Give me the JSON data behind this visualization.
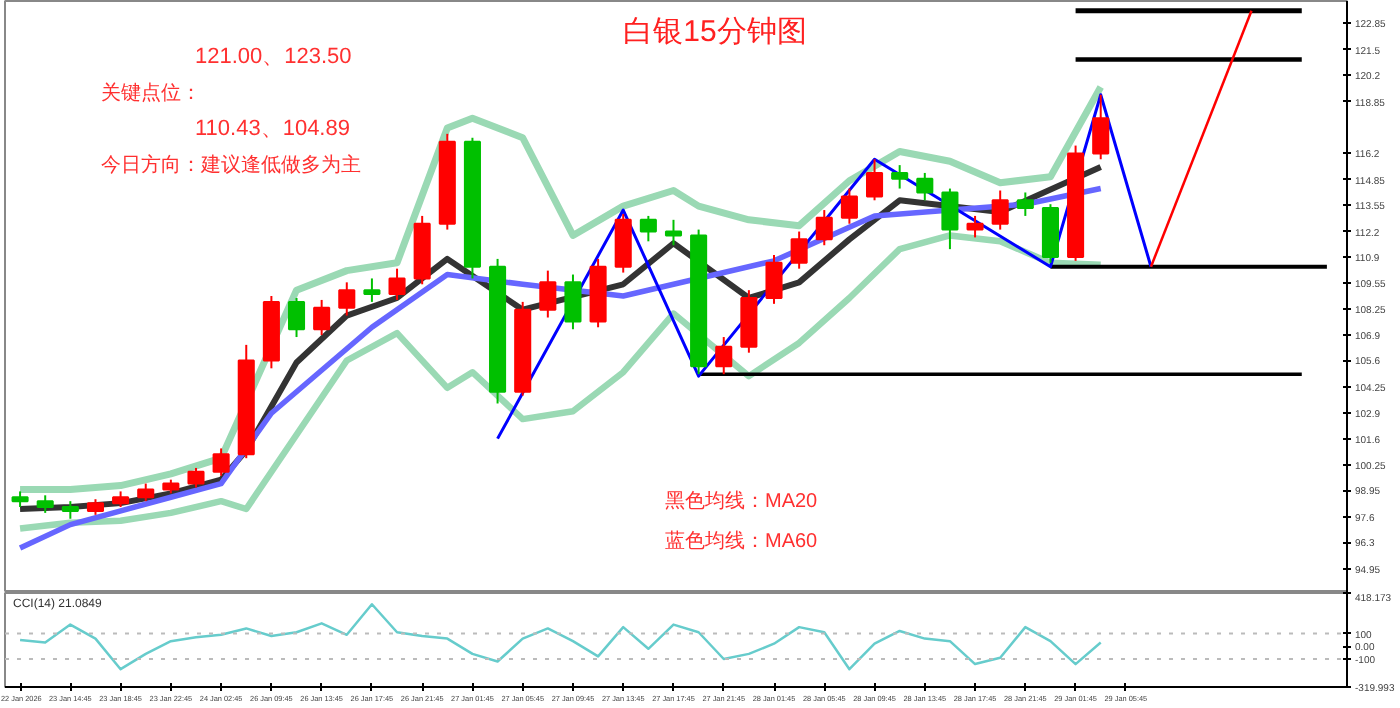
{
  "chart_data": [
    {
      "type": "candlestick",
      "title": "白银15分钟图",
      "annotations": [
        "121.00、123.50",
        "关键点位：",
        "110.43、104.89",
        "今日方向：建议逢低做多为主",
        "黑色均线：MA20",
        "蓝色均线：MA60"
      ],
      "categories": [
        null,
        null,
        null,
        null,
        null,
        null,
        null,
        null,
        null,
        null,
        null,
        null,
        null,
        null,
        null,
        null,
        null,
        null,
        null,
        null,
        null,
        null,
        null,
        null,
        null,
        null,
        null,
        null,
        null,
        null,
        null,
        null,
        null,
        null,
        null,
        null,
        null,
        null,
        null,
        null,
        null,
        null,
        null,
        null,
        null,
        null,
        null,
        null,
        null,
        null,
        null,
        null,
        null
      ],
      "ohlc": [
        [
          98.6,
          98.9,
          98.1,
          98.4
        ],
        [
          98.4,
          98.7,
          97.8,
          98.1
        ],
        [
          98.1,
          98.4,
          97.5,
          97.9
        ],
        [
          97.9,
          98.5,
          97.7,
          98.3
        ],
        [
          98.3,
          98.9,
          98.1,
          98.6
        ],
        [
          98.6,
          99.3,
          98.4,
          99.0
        ],
        [
          99.0,
          99.5,
          98.8,
          99.3
        ],
        [
          99.3,
          100.1,
          99.1,
          99.9
        ],
        [
          99.9,
          101.1,
          99.7,
          100.8
        ],
        [
          100.8,
          106.4,
          100.6,
          105.6
        ],
        [
          105.6,
          108.9,
          105.2,
          108.6
        ],
        [
          108.6,
          108.8,
          106.8,
          107.2
        ],
        [
          107.2,
          108.7,
          106.9,
          108.3
        ],
        [
          108.3,
          109.6,
          107.9,
          109.2
        ],
        [
          109.2,
          109.8,
          108.6,
          109.0
        ],
        [
          109.0,
          110.3,
          108.7,
          109.8
        ],
        [
          109.8,
          113.0,
          109.5,
          112.6
        ],
        [
          112.6,
          117.2,
          112.3,
          116.8
        ],
        [
          116.8,
          117.0,
          109.8,
          110.4
        ],
        [
          110.4,
          110.8,
          103.4,
          104.0
        ],
        [
          104.0,
          108.6,
          103.8,
          108.2
        ],
        [
          108.2,
          110.2,
          107.8,
          109.6
        ],
        [
          109.6,
          110.0,
          107.2,
          107.6
        ],
        [
          107.6,
          110.8,
          107.3,
          110.4
        ],
        [
          110.4,
          113.1,
          110.1,
          112.8
        ],
        [
          112.8,
          113.0,
          111.7,
          112.2
        ],
        [
          112.2,
          112.8,
          111.5,
          112.0
        ],
        [
          112.0,
          112.3,
          104.9,
          105.3
        ],
        [
          105.3,
          106.8,
          104.9,
          106.3
        ],
        [
          106.3,
          109.2,
          106.0,
          108.8
        ],
        [
          108.8,
          111.0,
          108.5,
          110.6
        ],
        [
          110.6,
          112.2,
          110.3,
          111.8
        ],
        [
          111.8,
          113.3,
          111.5,
          112.9
        ],
        [
          112.9,
          114.4,
          112.6,
          114.0
        ],
        [
          114.0,
          115.9,
          113.8,
          115.2
        ],
        [
          115.2,
          115.6,
          114.4,
          114.9
        ],
        [
          114.9,
          115.2,
          113.8,
          114.2
        ],
        [
          114.2,
          114.4,
          111.3,
          112.3
        ],
        [
          112.3,
          113.0,
          111.9,
          112.6
        ],
        [
          112.6,
          114.3,
          112.3,
          113.8
        ],
        [
          113.8,
          114.2,
          113.0,
          113.4
        ],
        [
          113.4,
          113.6,
          110.6,
          110.9
        ],
        [
          110.9,
          116.6,
          110.7,
          116.2
        ],
        [
          116.2,
          119.2,
          115.9,
          118.0
        ],
        null,
        null,
        null,
        null,
        null,
        null,
        null,
        null,
        null
      ],
      "colors": [
        "#00c000",
        "#00c000",
        "#00c000",
        "#ff0000",
        "#ff0000",
        "#ff0000",
        "#ff0000",
        "#ff0000",
        "#ff0000",
        "#ff0000",
        "#ff0000",
        "#00c000",
        "#ff0000",
        "#ff0000",
        "#00c000",
        "#ff0000",
        "#ff0000",
        "#ff0000",
        "#00c000",
        "#00c000",
        "#ff0000",
        "#ff0000",
        "#00c000",
        "#ff0000",
        "#ff0000",
        "#00c000",
        "#00c000",
        "#00c000",
        "#ff0000",
        "#ff0000",
        "#ff0000",
        "#ff0000",
        "#ff0000",
        "#ff0000",
        "#ff0000",
        "#00c000",
        "#00c000",
        "#00c000",
        "#ff0000",
        "#ff0000",
        "#00c000",
        "#00c000",
        "#ff0000",
        "#ff0000",
        null,
        null,
        null,
        null,
        null,
        null,
        null,
        null,
        null
      ],
      "series": [
        {
          "type": "line",
          "color": "#9ad9b4",
          "values": [
            99.0,
            null,
            99.0,
            null,
            99.2,
            null,
            99.8,
            null,
            100.6,
            null,
            null,
            109.2,
            null,
            110.2,
            null,
            110.6,
            null,
            117.5,
            118.0,
            null,
            117.0,
            null,
            112.0,
            null,
            113.5,
            null,
            114.3,
            113.5,
            null,
            112.8,
            null,
            112.5,
            null,
            114.8,
            null,
            116.3,
            null,
            115.8,
            null,
            114.7,
            null,
            115.0,
            null,
            119.6,
            null,
            null,
            null,
            null,
            null,
            null,
            null,
            null,
            null
          ]
        },
        {
          "type": "line",
          "color": "#9ad9b4",
          "values": [
            97.0,
            null,
            97.3,
            null,
            97.4,
            null,
            97.8,
            null,
            98.4,
            98.0,
            null,
            101.8,
            null,
            105.6,
            null,
            107.0,
            null,
            104.2,
            105.0,
            null,
            102.6,
            null,
            103.0,
            null,
            105.0,
            null,
            108.0,
            null,
            null,
            104.8,
            null,
            106.5,
            null,
            108.8,
            null,
            111.3,
            null,
            112.0,
            null,
            111.7,
            null,
            110.6,
            null,
            110.5,
            null,
            null,
            null,
            null,
            null,
            null,
            null,
            null,
            null
          ]
        },
        {
          "type": "line",
          "color": "#333333",
          "values": [
            98.0,
            null,
            98.1,
            null,
            98.3,
            null,
            98.8,
            null,
            99.5,
            101.0,
            null,
            105.5,
            null,
            107.9,
            null,
            108.8,
            null,
            110.8,
            null,
            null,
            108.2,
            null,
            null,
            null,
            109.5,
            null,
            111.6,
            null,
            null,
            108.8,
            null,
            109.6,
            null,
            111.8,
            null,
            113.8,
            null,
            null,
            null,
            113.2,
            null,
            null,
            null,
            115.5,
            null,
            null,
            null,
            null,
            null,
            null,
            null,
            null,
            null
          ]
        },
        {
          "type": "line",
          "color": "#6666ff",
          "values": [
            96.0,
            null,
            97.2,
            null,
            null,
            null,
            98.6,
            null,
            99.3,
            null,
            102.9,
            null,
            null,
            null,
            107.3,
            null,
            null,
            110.0,
            null,
            null,
            109.5,
            null,
            null,
            null,
            108.9,
            null,
            null,
            null,
            null,
            null,
            110.7,
            null,
            null,
            null,
            113.0,
            null,
            null,
            null,
            null,
            null,
            113.6,
            null,
            null,
            114.4,
            null,
            null,
            null,
            null,
            null,
            null,
            null,
            null,
            null
          ]
        },
        {
          "type": "line",
          "color": "#000000",
          "values": [
            null,
            null,
            null,
            null,
            null,
            null,
            null,
            null,
            null,
            null,
            null,
            null,
            null,
            null,
            null,
            null,
            null,
            null,
            null,
            null,
            null,
            null,
            null,
            null,
            null,
            null,
            null,
            null,
            null,
            null,
            null,
            null,
            null,
            null,
            null,
            null,
            null,
            null,
            null,
            null,
            null,
            null,
            123.5,
            null,
            null,
            null,
            null,
            null,
            null,
            null,
            null,
            123.5,
            null
          ]
        },
        {
          "type": "line",
          "color": "#000000",
          "values": [
            null,
            null,
            null,
            null,
            null,
            null,
            null,
            null,
            null,
            null,
            null,
            null,
            null,
            null,
            null,
            null,
            null,
            null,
            null,
            null,
            null,
            null,
            null,
            null,
            null,
            null,
            null,
            null,
            null,
            null,
            null,
            null,
            null,
            null,
            null,
            null,
            null,
            null,
            null,
            null,
            null,
            null,
            121.0,
            null,
            null,
            null,
            null,
            null,
            null,
            null,
            null,
            121.0,
            null
          ]
        },
        {
          "type": "line",
          "color": "#000000",
          "values": [
            null,
            null,
            null,
            null,
            null,
            null,
            null,
            null,
            null,
            null,
            null,
            null,
            null,
            null,
            null,
            null,
            null,
            null,
            null,
            null,
            null,
            null,
            null,
            null,
            null,
            null,
            null,
            null,
            null,
            null,
            null,
            null,
            null,
            null,
            null,
            null,
            null,
            null,
            null,
            null,
            null,
            110.4,
            null,
            null,
            null,
            null,
            null,
            null,
            null,
            null,
            null,
            null,
            110.4
          ]
        },
        {
          "type": "line",
          "color": "#000000",
          "values": [
            null,
            null,
            null,
            null,
            null,
            null,
            null,
            null,
            null,
            null,
            null,
            null,
            null,
            null,
            null,
            null,
            null,
            null,
            null,
            null,
            null,
            null,
            null,
            null,
            null,
            null,
            null,
            104.9,
            null,
            null,
            null,
            null,
            null,
            null,
            null,
            null,
            null,
            null,
            null,
            null,
            null,
            null,
            null,
            null,
            null,
            null,
            null,
            null,
            null,
            null,
            null,
            104.9,
            null
          ]
        },
        {
          "type": "line",
          "color": "#0000ff",
          "values": [
            null,
            null,
            null,
            null,
            null,
            null,
            null,
            null,
            null,
            null,
            null,
            null,
            null,
            null,
            null,
            null,
            null,
            null,
            null,
            101.6,
            null,
            null,
            null,
            null,
            113.3,
            null,
            null,
            104.8,
            null,
            null,
            null,
            null,
            null,
            null,
            115.9,
            null,
            null,
            null,
            null,
            null,
            null,
            110.4,
            null,
            119.2,
            null,
            110.4,
            null,
            null,
            null,
            null,
            null,
            null,
            null
          ]
        },
        {
          "type": "line",
          "color": "#ff0000",
          "values": [
            null,
            null,
            null,
            null,
            null,
            null,
            null,
            null,
            null,
            null,
            null,
            null,
            null,
            null,
            null,
            null,
            null,
            null,
            null,
            null,
            null,
            null,
            null,
            null,
            null,
            null,
            null,
            null,
            null,
            null,
            null,
            null,
            null,
            null,
            null,
            null,
            null,
            null,
            null,
            null,
            null,
            null,
            null,
            null,
            null,
            110.4,
            null,
            null,
            null,
            123.5,
            null,
            null,
            null
          ]
        }
      ],
      "ylim": [
        93.7,
        124.0
      ],
      "yticks": [
        122.85,
        121.5,
        120.2,
        118.85,
        116.2,
        114.85,
        113.55,
        112.2,
        110.9,
        109.55,
        108.25,
        106.9,
        105.6,
        104.25,
        102.9,
        101.6,
        100.25,
        98.95,
        97.6,
        96.3,
        94.95
      ],
      "tick_labels": "y"
    },
    {
      "type": "line",
      "title": "CCI(14) 21.0849",
      "categories": [
        "22 Jan 2026",
        null,
        "23 Jan 14:45",
        null,
        "23 Jan 18:45",
        null,
        "23 Jan 22:45",
        null,
        "24 Jan 02:45",
        null,
        "26 Jan 09:45",
        null,
        "26 Jan 13:45",
        null,
        "26 Jan 17:45",
        null,
        "26 Jan 21:45",
        null,
        "27 Jan 01:45",
        null,
        "27 Jan 05:45",
        null,
        "27 Jan 09:45",
        null,
        "27 Jan 13:45",
        null,
        "27 Jan 17:45",
        null,
        "27 Jan 21:45",
        null,
        "28 Jan 01:45",
        null,
        "28 Jan 05:45",
        null,
        "28 Jan 09:45",
        null,
        "28 Jan 13:45",
        null,
        "28 Jan 17:45",
        null,
        "28 Jan 21:45",
        null,
        "29 Jan 01:45",
        null,
        "29 Jan 05:45",
        null,
        null,
        null,
        null,
        null,
        null,
        null,
        null
      ],
      "series": [
        {
          "color": "#66cccc",
          "values": [
            50,
            30,
            170,
            60,
            -180,
            -60,
            40,
            70,
            90,
            140,
            80,
            110,
            180,
            90,
            330,
            110,
            80,
            60,
            -60,
            -120,
            60,
            140,
            40,
            -80,
            150,
            -20,
            170,
            110,
            -100,
            -60,
            20,
            150,
            110,
            -180,
            20,
            120,
            60,
            40,
            -140,
            -90,
            150,
            40,
            -140,
            30,
            null,
            null,
            null,
            null,
            null,
            null,
            null,
            null,
            null
          ]
        }
      ],
      "ref_lines": [
        {
          "axis": "y",
          "value": 100,
          "color": "#bbbbbb",
          "line_style": "dotted"
        },
        {
          "axis": "y",
          "value": -100,
          "color": "#bbbbbb",
          "line_style": "dotted"
        }
      ],
      "ylim": [
        -319.993,
        418.173
      ],
      "yticks": [
        {
          "value": 418.173,
          "label": "418.173"
        },
        100,
        {
          "value": 0,
          "label": "0.00"
        },
        -100,
        {
          "value": -319.993,
          "label": "-319.993"
        }
      ]
    }
  ]
}
